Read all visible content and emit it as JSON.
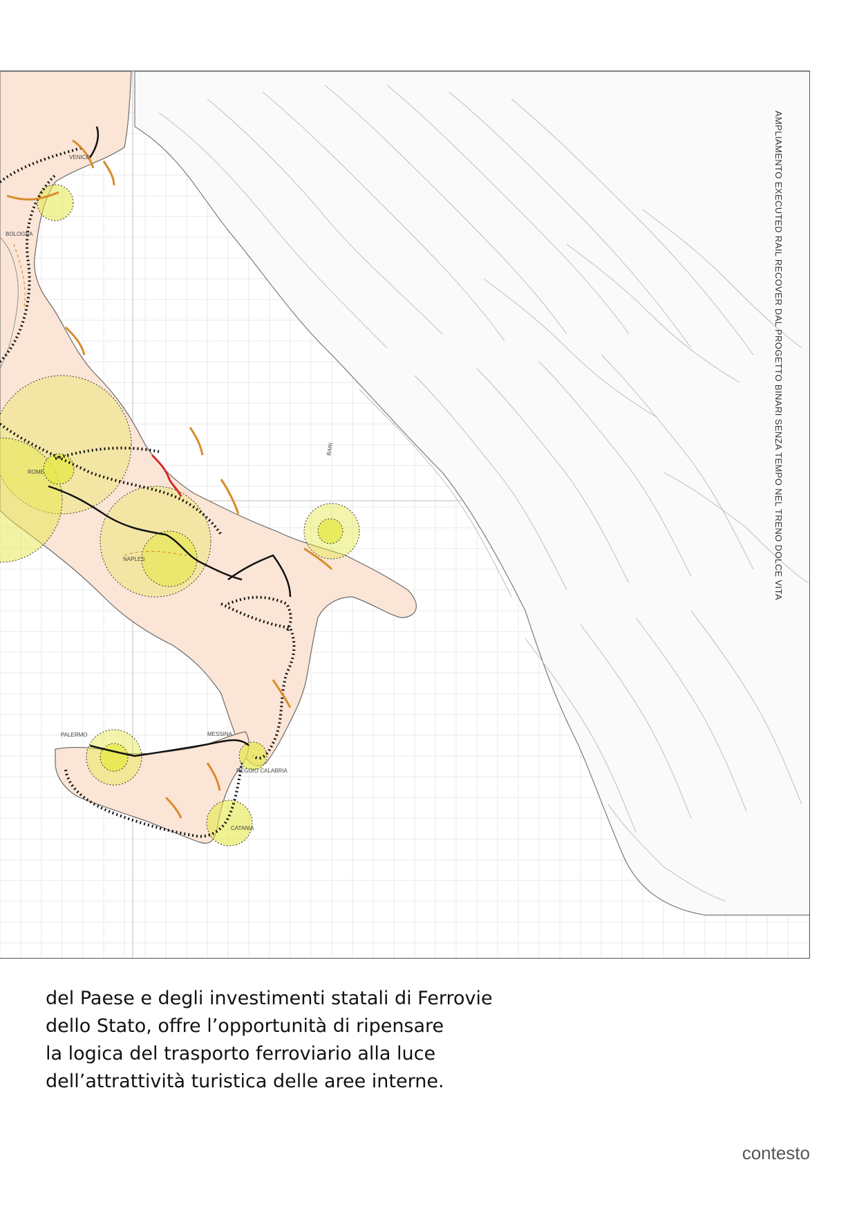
{
  "map": {
    "vertical_title": "AMPLIAMENTO EXECUTED RAIL RECOVER DAL PROGETTO BINARI SENZA TEMPO NEL TRENO DOLCE VITA",
    "cities": [
      {
        "name": "VENICE"
      },
      {
        "name": "BOLOGNA"
      },
      {
        "name": "ROME"
      },
      {
        "name": "NAPLES"
      },
      {
        "name": "BARI"
      },
      {
        "name": "PALERMO"
      },
      {
        "name": "MESSINA"
      },
      {
        "name": "REGGIO CALABRIA"
      },
      {
        "name": "CATANIA"
      }
    ],
    "colors": {
      "frame": "#555555",
      "grid": "#dcdcdc",
      "contour": "#b8b8b8",
      "coast": "#6a6a6a",
      "land_fill": "#fbe3d2",
      "hub_circle": "#e6e84a",
      "rail_black": "#111111",
      "rail_orange": "#d98a2b",
      "rail_red": "#d42a2a"
    }
  },
  "text": {
    "paragraph_lines": [
      "del Paese e degli investimenti statali di Ferrovie",
      "dello Stato, offre l’opportunità di ripensare",
      "la logica del trasporto ferroviario alla luce",
      "dell’attrattività turistica delle aree interne."
    ],
    "footer_label": "contesto"
  }
}
